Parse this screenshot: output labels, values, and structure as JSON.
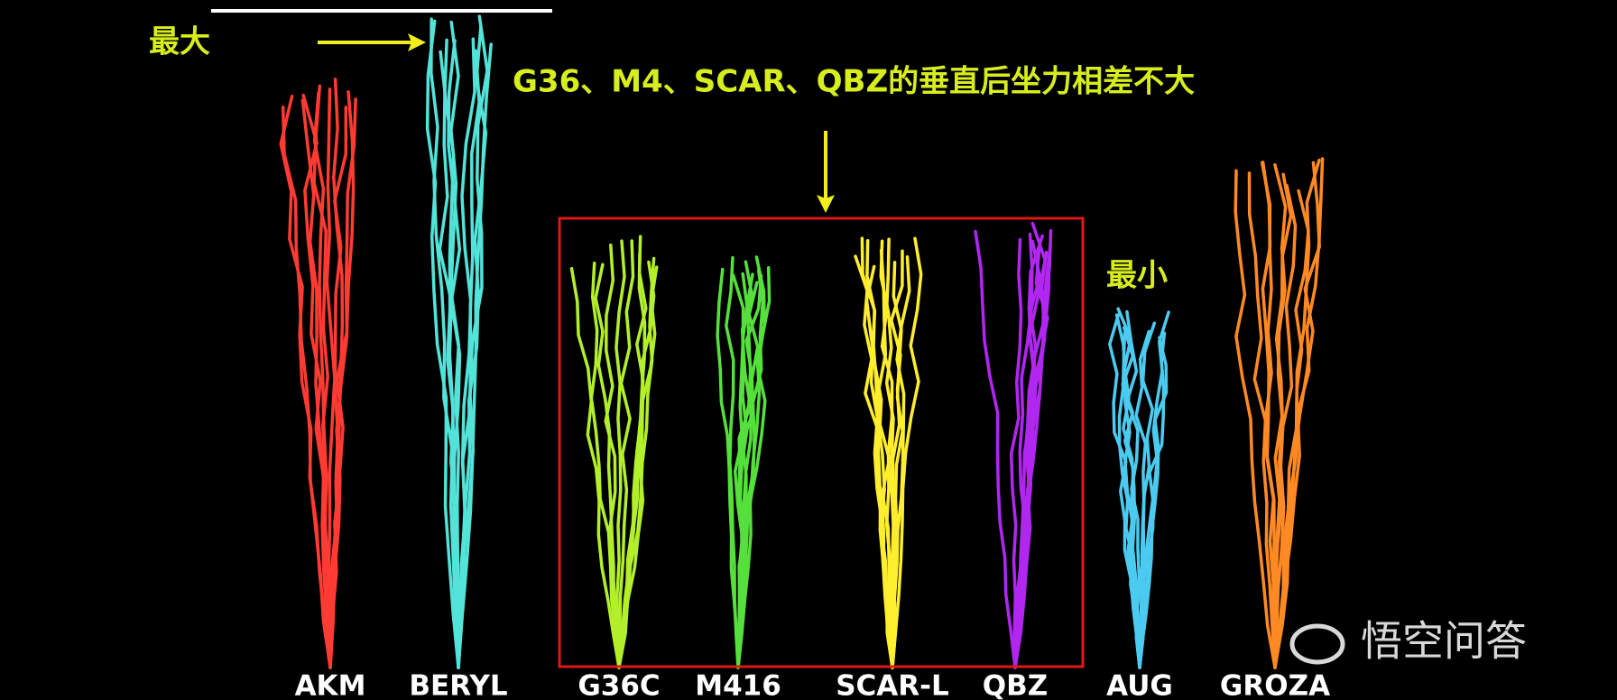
{
  "annotations": {
    "max": "最大",
    "headline": "G36、M4、SCAR、QBZ的垂直后坐力相差不大",
    "min": "最小"
  },
  "weapons": [
    {
      "label": "AKM",
      "color": "#ff3b33"
    },
    {
      "label": "BERYL",
      "color": "#52e3d9"
    },
    {
      "label": "G36C",
      "color": "#b3ef2a"
    },
    {
      "label": "M416",
      "color": "#55e03c"
    },
    {
      "label": "SCAR-L",
      "color": "#ffee2e"
    },
    {
      "label": "QBZ",
      "color": "#b226f2"
    },
    {
      "label": "AUG",
      "color": "#4ccbf0"
    },
    {
      "label": "GROZA",
      "color": "#ff8a24"
    }
  ],
  "watermark": "悟空问答"
}
